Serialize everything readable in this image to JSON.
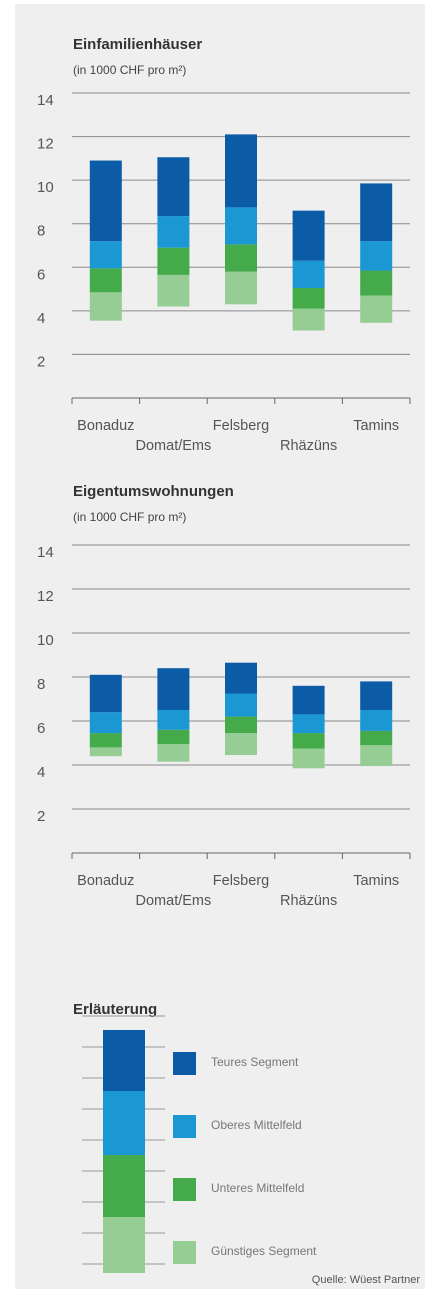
{
  "chart_data": [
    {
      "type": "floating-stacked-bar",
      "title": "Einfamilienhäuser",
      "subtitle": "(in 1000 CHF pro m²)",
      "categories": [
        "Bonaduz",
        "Domat/Ems",
        "Felsberg",
        "Rhäzüns",
        "Tamins"
      ],
      "bottom": [
        3.55,
        4.2,
        4.3,
        3.1,
        3.45
      ],
      "series": [
        {
          "name": "Günstiges Segment",
          "color": "#95cd95",
          "values": [
            1.3,
            1.45,
            1.5,
            1.0,
            1.25
          ]
        },
        {
          "name": "Unteres Mittelfeld",
          "color": "#45ab4a",
          "values": [
            1.1,
            1.25,
            1.25,
            0.95,
            1.15
          ]
        },
        {
          "name": "Oberes Mittelfeld",
          "color": "#1b97d4",
          "values": [
            1.25,
            1.45,
            1.7,
            1.25,
            1.35
          ]
        },
        {
          "name": "Teures Segment",
          "color": "#0b5ba6",
          "values": [
            3.7,
            2.7,
            3.35,
            2.3,
            2.65
          ]
        }
      ],
      "ylim": [
        0,
        14
      ],
      "yticks": [
        2,
        4,
        6,
        8,
        10,
        12,
        14
      ],
      "grid": true
    },
    {
      "type": "floating-stacked-bar",
      "title": "Eigentumswohnungen",
      "subtitle": "(in 1000 CHF pro m²)",
      "categories": [
        "Bonaduz",
        "Domat/Ems",
        "Felsberg",
        "Rhäzüns",
        "Tamins"
      ],
      "bottom": [
        4.4,
        4.15,
        4.45,
        3.85,
        3.95
      ],
      "series": [
        {
          "color": "#95cd95",
          "values": [
            0.4,
            0.8,
            1.0,
            0.9,
            0.95
          ]
        },
        {
          "color": "#45ab4a",
          "values": [
            0.65,
            0.65,
            0.75,
            0.7,
            0.65
          ]
        },
        {
          "color": "#1b97d4",
          "values": [
            0.95,
            0.9,
            1.05,
            0.85,
            0.95
          ]
        },
        {
          "color": "#0b5ba6",
          "values": [
            1.7,
            1.9,
            1.4,
            1.3,
            1.3
          ]
        }
      ],
      "ylim": [
        0,
        14
      ],
      "yticks": [
        2,
        4,
        6,
        8,
        10,
        12,
        14
      ],
      "grid": true
    }
  ],
  "legend_title": "Erläuterung",
  "source": "Quelle: Wüest Partner"
}
